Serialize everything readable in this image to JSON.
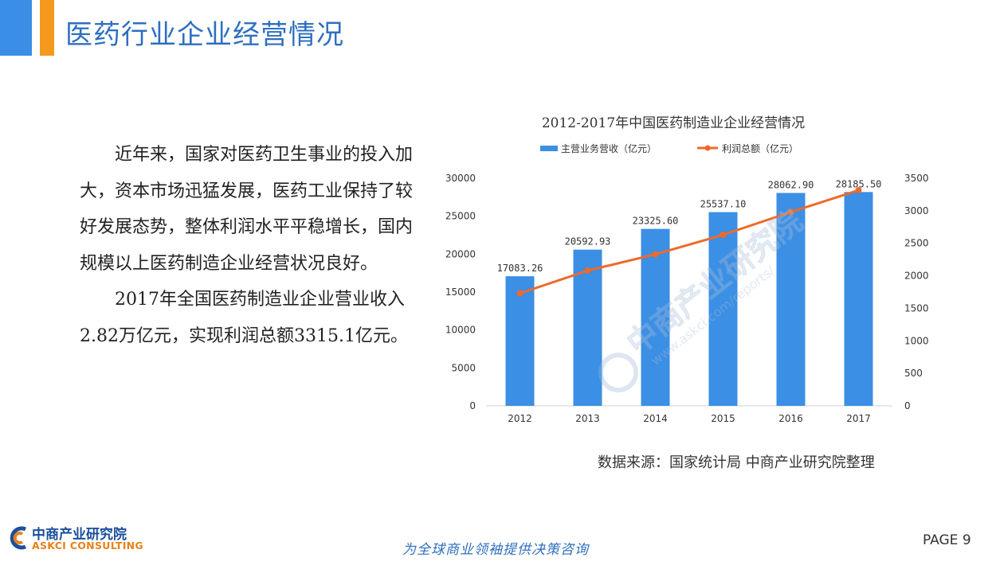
{
  "header": {
    "title": "医药行业企业经营情况"
  },
  "body": {
    "paragraphs": [
      "近年来，国家对医药卫生事业的投入加大，资本市场迅猛发展，医药工业保持了较好发展态势，整体利润水平平稳增长，国内规模以上医药制造企业经营状况良好。",
      "2017年全国医药制造业企业营业收入2.82万亿元，实现利润总额3315.1亿元。"
    ]
  },
  "chart_data": {
    "type": "bar",
    "title": "2012-2017年中国医药制造业企业经营情况",
    "categories": [
      "2012",
      "2013",
      "2014",
      "2015",
      "2016",
      "2017"
    ],
    "series": [
      {
        "name": "主营业务营收（亿元）",
        "type": "bar",
        "axis": "left",
        "values": [
          17083.26,
          20592.93,
          23325.6,
          25537.1,
          28062.9,
          28185.5
        ],
        "labels": [
          "17083.26",
          "20592.93",
          "23325.60",
          "25537.10",
          "28062.90",
          "28185.50"
        ],
        "color": "#3b8fe4"
      },
      {
        "name": "利润总额（亿元）",
        "type": "line",
        "axis": "right",
        "values": [
          1730,
          2080,
          2330,
          2630,
          2980,
          3315.1
        ],
        "color": "#ee6a2a"
      }
    ],
    "y_left": {
      "lim": [
        0,
        30000
      ],
      "ticks": [
        "0",
        "5000",
        "10000",
        "15000",
        "20000",
        "25000",
        "30000"
      ]
    },
    "y_right": {
      "lim": [
        0,
        3500
      ],
      "ticks": [
        "0",
        "500",
        "1000",
        "1500",
        "2000",
        "2500",
        "3000",
        "3500"
      ]
    },
    "legend": "top-center",
    "grid": false
  },
  "watermark": {
    "name": "中商产业研究院",
    "url": "www.askci.com/reports/"
  },
  "footer": {
    "source": "数据来源：国家统计局 中商产业研究院整理",
    "logo_cn": "中商产业研究院",
    "logo_en": "ASKCI CONSULTING",
    "slogan": "为全球商业领袖提供决策咨询",
    "page": "PAGE 9"
  }
}
